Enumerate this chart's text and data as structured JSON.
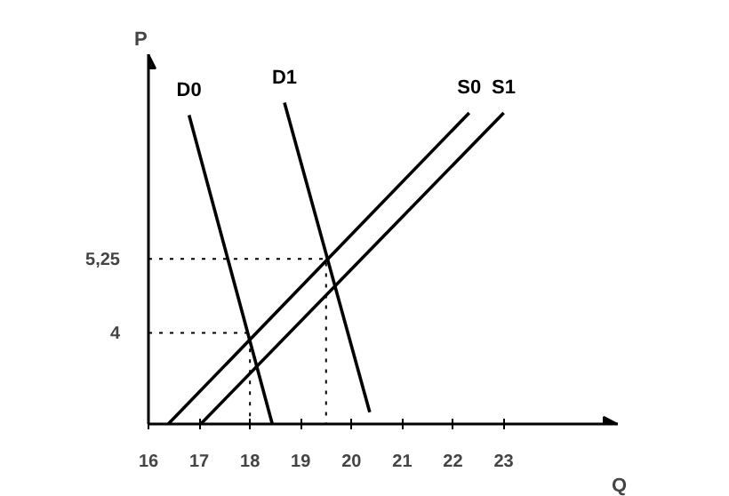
{
  "chart_data": {
    "type": "line",
    "xlabel": "Q",
    "ylabel": "P",
    "xlim": [
      16,
      25.25
    ],
    "ylim": [
      2.46,
      8.71
    ],
    "xticks": [
      16,
      17,
      18,
      19,
      20,
      21,
      22,
      23
    ],
    "yticks": [
      4,
      {
        "value": 5.25,
        "label": "5,25"
      }
    ],
    "grid": false,
    "marker": "none",
    "line_style": "solid",
    "series": [
      {
        "name": "D0",
        "color": "#000000",
        "x": [
          16.8,
          18.44
        ],
        "values": [
          7.68,
          2.46
        ]
      },
      {
        "name": "D1",
        "color": "#000000",
        "x": [
          18.68,
          20.36
        ],
        "values": [
          7.89,
          2.66
        ]
      },
      {
        "name": "S0",
        "color": "#000000",
        "x": [
          16.39,
          22.32
        ],
        "values": [
          2.46,
          7.72
        ]
      },
      {
        "name": "S1",
        "color": "#000000",
        "x": [
          17.03,
          23.0
        ],
        "values": [
          2.46,
          7.72
        ]
      },
      {
        "color": "#000000",
        "line_style": "dotted",
        "x": [
          16,
          19.5,
          19.5
        ],
        "values": [
          5.25,
          5.25,
          2.46
        ]
      },
      {
        "color": "#000000",
        "line_style": "dotted",
        "x": [
          16,
          18,
          18
        ],
        "values": [
          4,
          4,
          2.46
        ]
      }
    ]
  }
}
